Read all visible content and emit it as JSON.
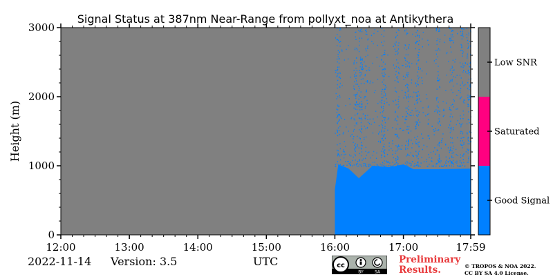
{
  "chart_data": {
    "type": "heatmap",
    "title": "Signal Status at 387nm Near-Range from pollyxt_noa at Antikythera",
    "ylabel": "Height (m)",
    "xlabel": "UTC",
    "x_ticks": [
      "12:00",
      "13:00",
      "14:00",
      "15:00",
      "16:00",
      "17:00",
      "17:59"
    ],
    "x_range_hours": [
      12.0,
      17.983
    ],
    "y_ticks": [
      0,
      1000,
      2000,
      3000
    ],
    "ylim": [
      0,
      3000
    ],
    "categories": [
      {
        "name": "Good Signal",
        "color": "#0080ff"
      },
      {
        "name": "Saturated",
        "color": "#ff0080"
      },
      {
        "name": "Low SNR",
        "color": "#808080"
      }
    ],
    "good_signal_start_hour": 16.0,
    "good_signal_top_profile": [
      {
        "hour": 16.0,
        "height": 660
      },
      {
        "hour": 16.05,
        "height": 1020
      },
      {
        "hour": 16.2,
        "height": 960
      },
      {
        "hour": 16.35,
        "height": 820
      },
      {
        "hour": 16.55,
        "height": 1000
      },
      {
        "hour": 16.8,
        "height": 980
      },
      {
        "hour": 17.0,
        "height": 1020
      },
      {
        "hour": 17.15,
        "height": 950
      },
      {
        "hour": 17.5,
        "height": 950
      },
      {
        "hour": 17.98,
        "height": 960
      }
    ]
  },
  "footer": {
    "date": "2022-11-14",
    "version": "Version: 3.5",
    "utc": "UTC",
    "preliminary_line1": "Preliminary",
    "preliminary_line2": "Results.",
    "copyright_line1": "© TROPOS & NOA 2022.",
    "copyright_line2": "CC BY SA 4.0 License.",
    "cc_icon": "cc-by-sa-license-icon"
  }
}
